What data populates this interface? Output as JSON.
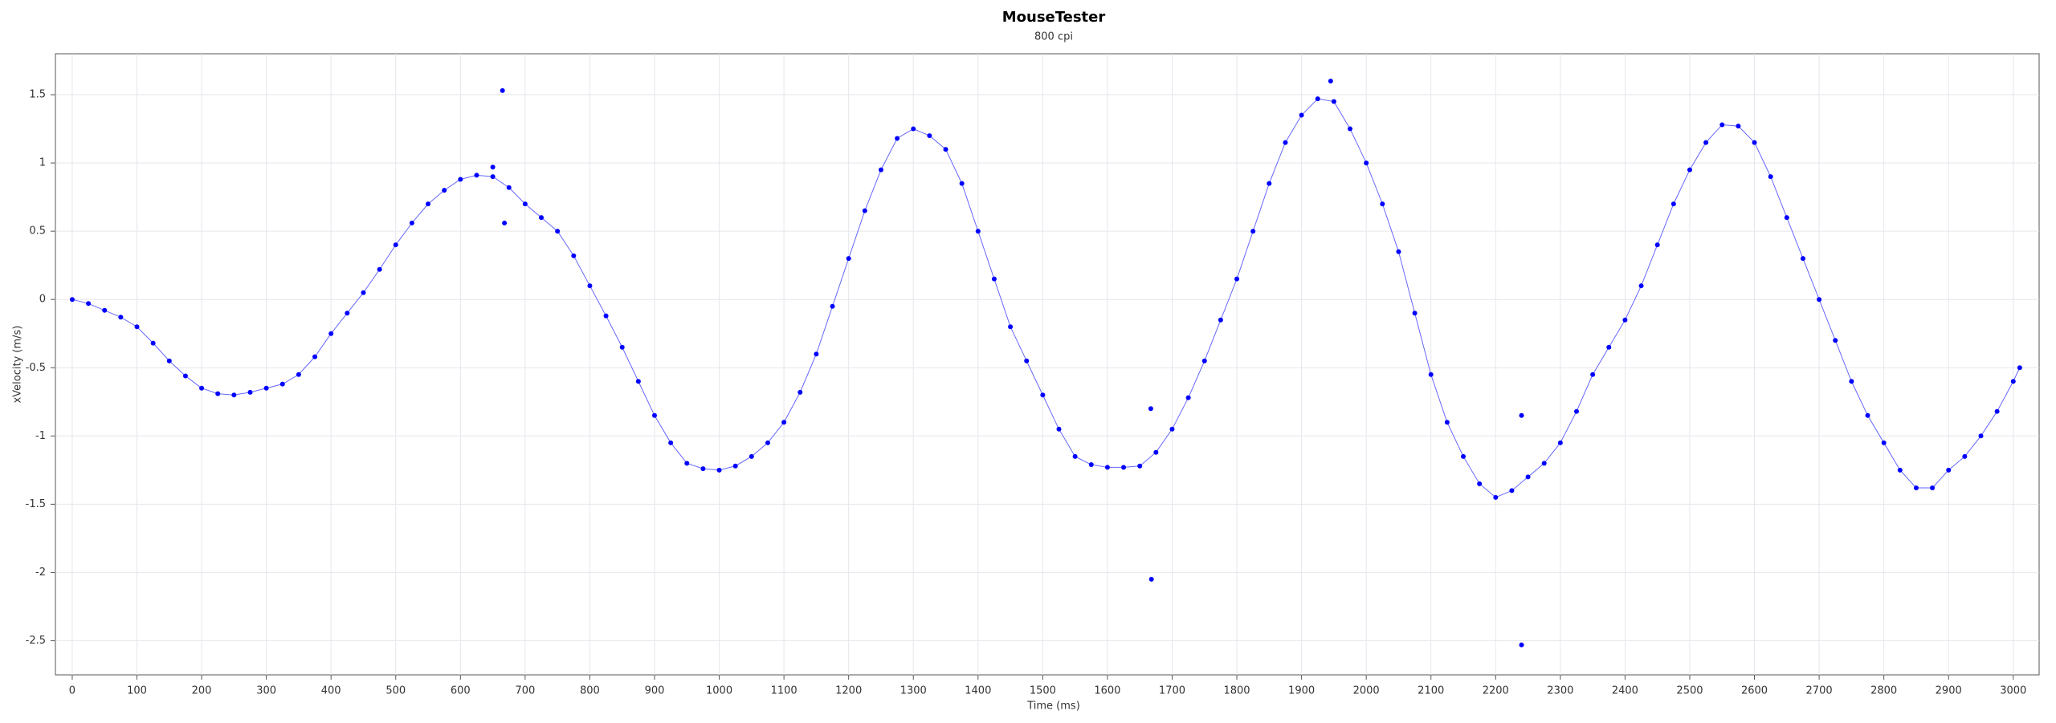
{
  "chart_data": {
    "type": "scatter",
    "title": "MouseTester",
    "subtitle": "800 cpi",
    "x_label": "Time (ms)",
    "y_label": "xVelocity (m/s)",
    "xlim": [
      -26,
      3040
    ],
    "ylim": [
      -2.75,
      1.8
    ],
    "xticks": [
      0,
      100,
      200,
      300,
      400,
      500,
      600,
      700,
      800,
      900,
      1000,
      1100,
      1200,
      1300,
      1400,
      1500,
      1600,
      1700,
      1800,
      1900,
      2000,
      2100,
      2200,
      2300,
      2400,
      2500,
      2600,
      2700,
      2800,
      2900,
      3000
    ],
    "yticks": [
      -2.5,
      -2,
      -1.5,
      -1,
      -0.5,
      0,
      0.5,
      1,
      1.5
    ],
    "grid": true,
    "series": [
      {
        "color": "#0000ff",
        "line": true,
        "x": [
          0,
          25,
          50,
          75,
          100,
          125,
          150,
          175,
          200,
          225,
          250,
          275,
          300,
          325,
          350,
          375,
          400,
          425,
          450,
          475,
          500,
          525,
          550,
          575,
          600,
          625,
          650,
          675,
          700,
          725,
          750,
          775,
          800,
          825,
          850,
          875,
          900,
          925,
          950,
          975,
          1000,
          1025,
          1050,
          1075,
          1100,
          1125,
          1150,
          1175,
          1200,
          1225,
          1250,
          1275,
          1300,
          1325,
          1350,
          1375,
          1400,
          1425,
          1450,
          1475,
          1500,
          1525,
          1550,
          1575,
          1600,
          1625,
          1650,
          1675,
          1700,
          1725,
          1750,
          1775,
          1800,
          1825,
          1850,
          1875,
          1900,
          1925,
          1950,
          1975,
          2000,
          2025,
          2050,
          2075,
          2100,
          2125,
          2150,
          2175,
          2200,
          2225,
          2250,
          2275,
          2300,
          2325,
          2350,
          2375,
          2400,
          2425,
          2450,
          2475,
          2500,
          2525,
          2550,
          2575,
          2600,
          2625,
          2650,
          2675,
          2700,
          2725,
          2750,
          2775,
          2800,
          2825,
          2850,
          2875,
          2900,
          2925,
          2950,
          2975,
          3000,
          3010
        ],
        "values": [
          0,
          -0.03,
          -0.08,
          -0.13,
          -0.2,
          -0.32,
          -0.45,
          -0.56,
          -0.65,
          -0.69,
          -0.7,
          -0.68,
          -0.65,
          -0.62,
          -0.55,
          -0.42,
          -0.25,
          -0.1,
          0.05,
          0.22,
          0.4,
          0.56,
          0.7,
          0.8,
          0.88,
          0.91,
          0.9,
          0.82,
          0.7,
          0.6,
          0.5,
          0.32,
          0.1,
          -0.12,
          -0.35,
          -0.6,
          -0.85,
          -1.05,
          -1.2,
          -1.24,
          -1.25,
          -1.22,
          -1.15,
          -1.05,
          -0.9,
          -0.68,
          -0.4,
          -0.05,
          0.3,
          0.65,
          0.95,
          1.18,
          1.25,
          1.2,
          1.1,
          0.85,
          0.5,
          0.15,
          -0.2,
          -0.45,
          -0.7,
          -0.95,
          -1.15,
          -1.21,
          -1.23,
          -1.23,
          -1.22,
          -1.12,
          -0.95,
          -0.72,
          -0.45,
          -0.15,
          0.15,
          0.5,
          0.85,
          1.15,
          1.35,
          1.47,
          1.45,
          1.25,
          1,
          0.7,
          0.35,
          -0.1,
          -0.55,
          -0.9,
          -1.15,
          -1.35,
          -1.45,
          -1.4,
          -1.3,
          -1.2,
          -1.05,
          -0.82,
          -0.55,
          -0.35,
          -0.15,
          0.1,
          0.4,
          0.7,
          0.95,
          1.15,
          1.28,
          1.27,
          1.15,
          0.9,
          0.6,
          0.3,
          0,
          -0.3,
          -0.6,
          -0.85,
          -1.05,
          -1.25,
          -1.38,
          -1.38,
          -1.25,
          -1.15,
          -1,
          -0.82,
          -0.6,
          -0.5
        ]
      },
      {
        "color": "#0000ff",
        "line": false,
        "x": [
          650,
          665,
          668,
          1667,
          1668,
          1945,
          2240,
          2240
        ],
        "values": [
          0.97,
          1.53,
          0.56,
          -0.8,
          -2.05,
          1.6,
          -0.85,
          -2.53
        ]
      }
    ]
  }
}
